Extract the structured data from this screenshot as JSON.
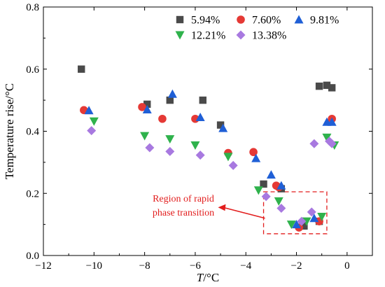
{
  "chart_data": {
    "type": "scatter",
    "xlabel_italic": "T",
    "xlabel_unit": "/°C",
    "ylabel": "Temperature rise/°C",
    "xlim": [
      -12,
      1
    ],
    "ylim": [
      0,
      0.8
    ],
    "xticks": [
      -12,
      -10,
      -8,
      -6,
      -4,
      -2,
      0
    ],
    "xtick_labels": [
      "−12",
      "−10",
      "−8",
      "−6",
      "−4",
      "−2",
      "0"
    ],
    "yticks": [
      0.0,
      0.2,
      0.4,
      0.6,
      0.8
    ],
    "ytick_labels": [
      "0.0",
      "0.2",
      "0.4",
      "0.6",
      "0.8"
    ],
    "legend_position": "top-right",
    "series": [
      {
        "name": "5.94%",
        "marker": "square",
        "color": "#4a4a4a",
        "points": [
          [
            -10.5,
            0.6
          ],
          [
            -7.9,
            0.487
          ],
          [
            -7.0,
            0.5
          ],
          [
            -5.7,
            0.5
          ],
          [
            -5.0,
            0.42
          ],
          [
            -3.3,
            0.23
          ],
          [
            -2.6,
            0.215
          ],
          [
            -1.7,
            0.095
          ],
          [
            -1.1,
            0.11
          ],
          [
            -1.1,
            0.545
          ],
          [
            -0.8,
            0.548
          ],
          [
            -0.6,
            0.54
          ]
        ]
      },
      {
        "name": "7.60%",
        "marker": "circle",
        "color": "#e53935",
        "points": [
          [
            -10.4,
            0.468
          ],
          [
            -8.1,
            0.478
          ],
          [
            -7.3,
            0.44
          ],
          [
            -6.0,
            0.44
          ],
          [
            -4.7,
            0.33
          ],
          [
            -3.7,
            0.333
          ],
          [
            -2.8,
            0.225
          ],
          [
            -2.7,
            0.22
          ],
          [
            -1.9,
            0.09
          ],
          [
            -1.1,
            0.11
          ],
          [
            -0.6,
            0.44
          ]
        ]
      },
      {
        "name": "9.81%",
        "marker": "triangle-up",
        "color": "#1f5fd6",
        "points": [
          [
            -10.2,
            0.467
          ],
          [
            -7.9,
            0.47
          ],
          [
            -6.9,
            0.52
          ],
          [
            -5.8,
            0.445
          ],
          [
            -4.9,
            0.41
          ],
          [
            -3.6,
            0.313
          ],
          [
            -3.0,
            0.26
          ],
          [
            -2.6,
            0.225
          ],
          [
            -2.0,
            0.1
          ],
          [
            -1.3,
            0.12
          ],
          [
            -0.8,
            0.43
          ],
          [
            -0.6,
            0.43
          ]
        ]
      },
      {
        "name": "12.21%",
        "marker": "triangle-down",
        "color": "#2fb24c",
        "points": [
          [
            -10.0,
            0.432
          ],
          [
            -8.0,
            0.385
          ],
          [
            -7.0,
            0.375
          ],
          [
            -6.0,
            0.355
          ],
          [
            -4.7,
            0.318
          ],
          [
            -3.5,
            0.21
          ],
          [
            -2.7,
            0.175
          ],
          [
            -2.2,
            0.1
          ],
          [
            -1.6,
            0.11
          ],
          [
            -1.0,
            0.125
          ],
          [
            -0.8,
            0.38
          ],
          [
            -0.5,
            0.355
          ]
        ]
      },
      {
        "name": "13.38%",
        "marker": "diamond",
        "color": "#a879e0",
        "points": [
          [
            -10.1,
            0.402
          ],
          [
            -7.8,
            0.347
          ],
          [
            -7.0,
            0.335
          ],
          [
            -5.8,
            0.323
          ],
          [
            -4.5,
            0.29
          ],
          [
            -3.2,
            0.19
          ],
          [
            -2.6,
            0.152
          ],
          [
            -1.8,
            0.11
          ],
          [
            -1.4,
            0.14
          ],
          [
            -1.3,
            0.36
          ],
          [
            -0.7,
            0.368
          ],
          [
            -0.6,
            0.36
          ]
        ]
      }
    ],
    "annotation": {
      "lines": [
        "Region of rapid",
        "phase transition"
      ],
      "color": "#e21d1d",
      "box_x": [
        -3.3,
        -0.8
      ],
      "box_y": [
        0.07,
        0.205
      ],
      "arrow_tip": [
        -5.1,
        0.155
      ]
    }
  }
}
